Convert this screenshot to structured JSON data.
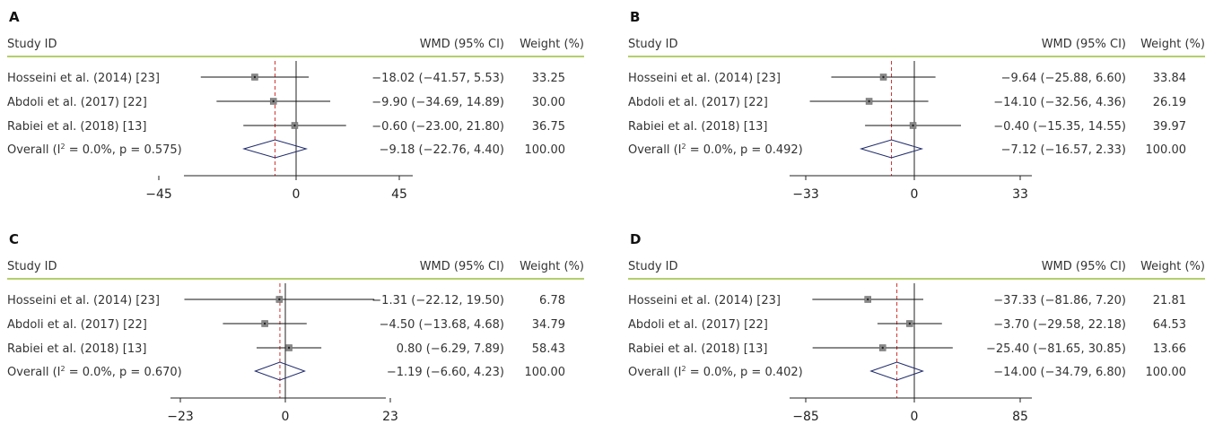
{
  "headers": {
    "study": "Study ID",
    "effect": "WMD (95% CI)",
    "weight": "Weight (%)"
  },
  "colors": {
    "header_rule": "#9cbf3c",
    "null_line": "#222222",
    "overall_line": "#d0312d",
    "diamond": "#1f2a6b",
    "ci_line": "#111111",
    "marker": "#888888"
  },
  "chart_data": [
    {
      "type": "forest",
      "panel": "A",
      "xticks": [
        -45,
        0,
        45
      ],
      "xlim": [
        -80,
        60
      ],
      "overall_estimate": -9.18,
      "studies": [
        {
          "label": "Hosseini et al. (2014) [23]",
          "estimate": -18.02,
          "lower": -41.57,
          "upper": 5.53,
          "ci_text": "−18.02 (−41.57, 5.53)",
          "weight_text": "33.25"
        },
        {
          "label": "Abdoli et al. (2017) [22]",
          "estimate": -9.9,
          "lower": -34.69,
          "upper": 14.89,
          "ci_text": "−9.90 (−34.69, 14.89)",
          "weight_text": "30.00"
        },
        {
          "label": "Rabiei et al. (2018) [13]",
          "estimate": -0.6,
          "lower": -23.0,
          "upper": 21.8,
          "ci_text": "−0.60 (−23.00, 21.80)",
          "weight_text": "36.75"
        }
      ],
      "overall": {
        "label_pre": "Overall (I",
        "label_sup": "2",
        "label_post": " = 0.0%, p = 0.575)",
        "estimate": -9.18,
        "lower": -22.76,
        "upper": 4.4,
        "ci_text": "−9.18 (−22.76, 4.40)",
        "weight_text": "100.00"
      }
    },
    {
      "type": "forest",
      "panel": "B",
      "xticks": [
        -33,
        0,
        33
      ],
      "xlim": [
        -46,
        45
      ],
      "overall_estimate": -7.12,
      "studies": [
        {
          "label": "Hosseini et al. (2014) [23]",
          "estimate": -9.64,
          "lower": -25.88,
          "upper": 6.6,
          "ci_text": "−9.64 (−25.88, 6.60)",
          "weight_text": "33.84"
        },
        {
          "label": "Abdoli et al. (2017) [22]",
          "estimate": -14.1,
          "lower": -32.56,
          "upper": 4.36,
          "ci_text": "−14.10 (−32.56, 4.36)",
          "weight_text": "26.19"
        },
        {
          "label": "Rabiei et al. (2018) [13]",
          "estimate": -0.4,
          "lower": -15.35,
          "upper": 14.55,
          "ci_text": "−0.40 (−15.35, 14.55)",
          "weight_text": "39.97"
        }
      ],
      "overall": {
        "label_pre": "Overall (I",
        "label_sup": "2",
        "label_post": " = 0.0%, p = 0.492)",
        "estimate": -7.12,
        "lower": -16.57,
        "upper": 2.33,
        "ci_text": "−7.12 (−16.57, 2.33)",
        "weight_text": "100.00"
      }
    },
    {
      "type": "forest",
      "panel": "C",
      "xticks": [
        -23,
        0,
        23
      ],
      "xlim": [
        -37,
        33
      ],
      "overall_estimate": -1.19,
      "studies": [
        {
          "label": "Hosseini et al. (2014) [23]",
          "estimate": -1.31,
          "lower": -22.12,
          "upper": 19.5,
          "ci_text": "−1.31 (−22.12, 19.50)",
          "weight_text": "6.78"
        },
        {
          "label": "Abdoli et al. (2017) [22]",
          "estimate": -4.5,
          "lower": -13.68,
          "upper": 4.68,
          "ci_text": "−4.50 (−13.68, 4.68)",
          "weight_text": "34.79"
        },
        {
          "label": "Rabiei et al. (2018) [13]",
          "estimate": 0.8,
          "lower": -6.29,
          "upper": 7.89,
          "ci_text": "0.80 (−6.29, 7.89)",
          "weight_text": "58.43"
        }
      ],
      "overall": {
        "label_pre": "Overall (I",
        "label_sup": "2",
        "label_post": " = 0.0%, p = 0.670)",
        "estimate": -1.19,
        "lower": -6.6,
        "upper": 4.23,
        "ci_text": "−1.19 (−6.60, 4.23)",
        "weight_text": "100.00"
      }
    },
    {
      "type": "forest",
      "panel": "D",
      "xticks": [
        -85,
        0,
        85
      ],
      "xlim": [
        -120,
        106
      ],
      "overall_estimate": -14.0,
      "studies": [
        {
          "label": "Hosseini et al. (2014) [23]",
          "estimate": -37.33,
          "lower": -81.86,
          "upper": 7.2,
          "ci_text": "−37.33 (−81.86, 7.20)",
          "weight_text": "21.81"
        },
        {
          "label": "Abdoli et al. (2017) [22]",
          "estimate": -3.7,
          "lower": -29.58,
          "upper": 22.18,
          "ci_text": "−3.70 (−29.58, 22.18)",
          "weight_text": "64.53"
        },
        {
          "label": "Rabiei et al. (2018) [13]",
          "estimate": -25.4,
          "lower": -81.65,
          "upper": 30.85,
          "ci_text": "−25.40 (−81.65, 30.85)",
          "weight_text": "13.66"
        }
      ],
      "overall": {
        "label_pre": "Overall (I",
        "label_sup": "2",
        "label_post": " = 0.0%, p = 0.402)",
        "estimate": -14.0,
        "lower": -34.79,
        "upper": 6.8,
        "ci_text": "−14.00 (−34.79, 6.80)",
        "weight_text": "100.00"
      }
    }
  ]
}
